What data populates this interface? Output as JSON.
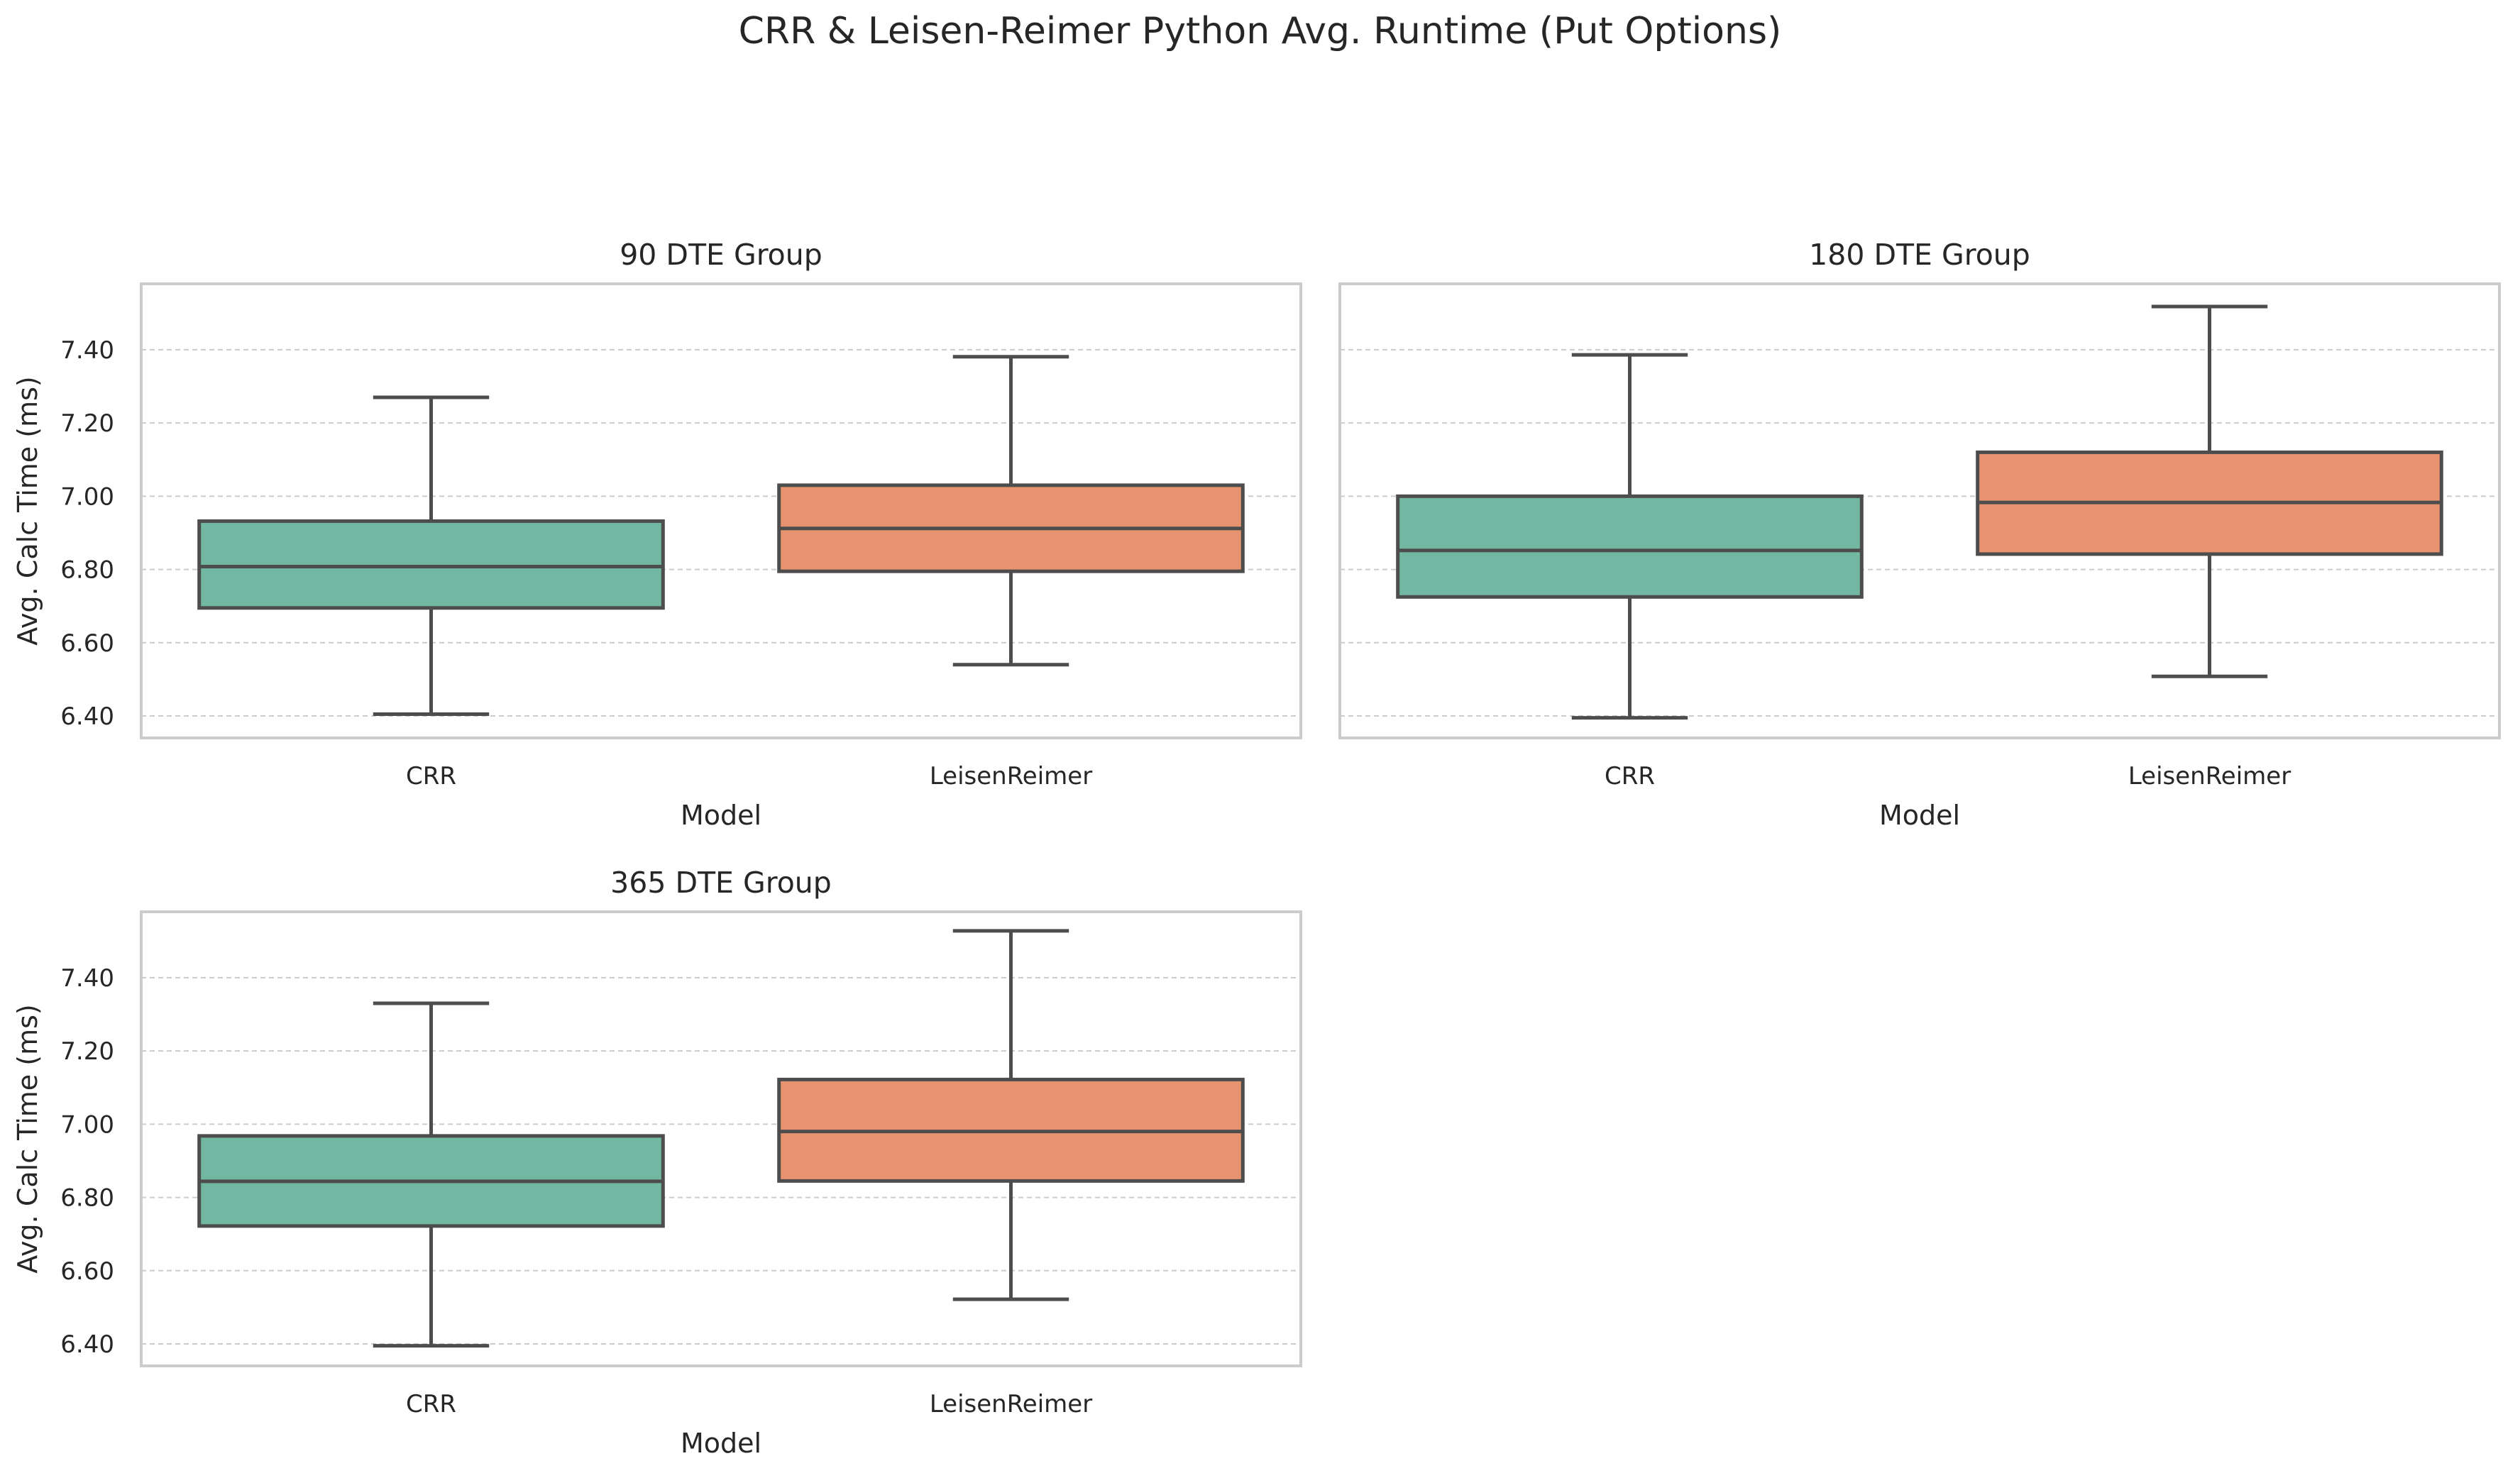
{
  "suptitle": "CRR & Leisen-Reimer Python Avg. Runtime (Put Options)",
  "colors": {
    "CRR": "#72b7a1",
    "LeisenReimer": "#e8936f",
    "edge": "#4d4d4d",
    "frame": "#cccccc",
    "grid": "#cccccc"
  },
  "chart_data": [
    {
      "type": "box",
      "title": "90 DTE Group",
      "xlabel": "Model",
      "ylabel": "Avg. Calc Time (ms)",
      "categories": [
        "CRR",
        "LeisenReimer"
      ],
      "yticks": [
        "6.40",
        "6.60",
        "6.80",
        "7.00",
        "7.20",
        "7.40"
      ],
      "ylim": [
        6.34,
        7.58
      ],
      "grid": true,
      "boxes": [
        {
          "name": "CRR",
          "whisker_low": 6.405,
          "q1": 6.695,
          "median": 6.808,
          "q3": 6.932,
          "whisker_high": 7.27
        },
        {
          "name": "LeisenReimer",
          "whisker_low": 6.54,
          "q1": 6.795,
          "median": 6.912,
          "q3": 7.03,
          "whisker_high": 7.381
        }
      ]
    },
    {
      "type": "box",
      "title": "180 DTE Group",
      "xlabel": "Model",
      "ylabel": "",
      "categories": [
        "CRR",
        "LeisenReimer"
      ],
      "yticks": [
        "6.40",
        "6.60",
        "6.80",
        "7.00",
        "7.20",
        "7.40"
      ],
      "ylim": [
        6.34,
        7.58
      ],
      "grid": true,
      "boxes": [
        {
          "name": "CRR",
          "whisker_low": 6.395,
          "q1": 6.725,
          "median": 6.852,
          "q3": 7.0,
          "whisker_high": 7.386
        },
        {
          "name": "LeisenReimer",
          "whisker_low": 6.508,
          "q1": 6.842,
          "median": 6.983,
          "q3": 7.12,
          "whisker_high": 7.518
        }
      ]
    },
    {
      "type": "box",
      "title": "365 DTE Group",
      "xlabel": "Model",
      "ylabel": "Avg. Calc Time (ms)",
      "categories": [
        "CRR",
        "LeisenReimer"
      ],
      "yticks": [
        "6.40",
        "6.60",
        "6.80",
        "7.00",
        "7.20",
        "7.40"
      ],
      "ylim": [
        6.34,
        7.58
      ],
      "grid": true,
      "boxes": [
        {
          "name": "CRR",
          "whisker_low": 6.395,
          "q1": 6.722,
          "median": 6.844,
          "q3": 6.968,
          "whisker_high": 7.33
        },
        {
          "name": "LeisenReimer",
          "whisker_low": 6.522,
          "q1": 6.845,
          "median": 6.98,
          "q3": 7.122,
          "whisker_high": 7.528
        }
      ]
    }
  ]
}
